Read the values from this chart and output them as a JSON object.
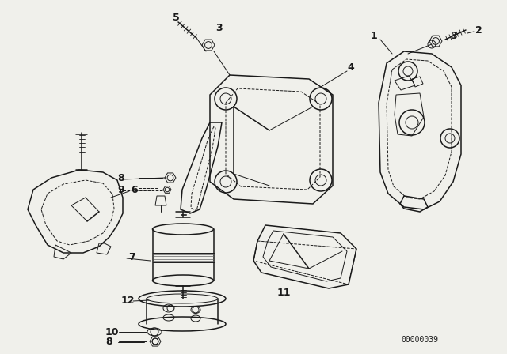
{
  "background_color": "#f0f0eb",
  "line_color": "#1a1a1a",
  "diagram_id": "00000039",
  "figsize": [
    6.4,
    4.48
  ],
  "dpi": 100
}
